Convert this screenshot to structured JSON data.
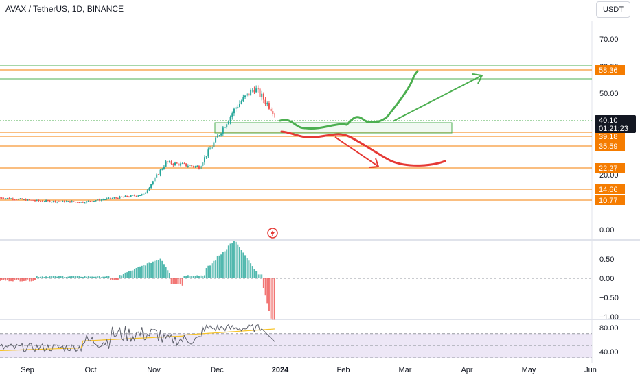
{
  "header": {
    "title": "AVAX / TetherUS, 1D, BINANCE",
    "currency": "USDT"
  },
  "colors": {
    "bull": "#26a69a",
    "bear": "#ef5350",
    "level": "#f57c00",
    "zone": "#4caf50",
    "drawing_green": "#4caf50",
    "drawing_red": "#e53935",
    "rsi_line": "#5d606b",
    "rsi_ma": "#f7c325",
    "rsi_band": "#ede7f6",
    "price_label": "#131722"
  },
  "price_axis": {
    "ticks": [
      "70.00",
      "60.00",
      "50.00",
      "20.00",
      "0.00"
    ],
    "levels": [
      {
        "value": 58.36,
        "label": "58.36"
      },
      {
        "value": 39.18,
        "label": "39.18"
      },
      {
        "value": 35.59,
        "label": "35.59"
      },
      {
        "value": 22.27,
        "label": "22.27"
      },
      {
        "value": 14.66,
        "label": "14.66"
      },
      {
        "value": 10.77,
        "label": "10.77"
      }
    ],
    "current": {
      "value": 40.1,
      "label": "40.10",
      "countdown": "01:21:23"
    }
  },
  "oscillator_axis": {
    "ticks": [
      "0.50",
      "0.00",
      "−0.50",
      "−1.00"
    ]
  },
  "rsi_axis": {
    "ticks": [
      "80.00",
      "40.00"
    ]
  },
  "time_axis": {
    "labels": [
      "Sep",
      "Oct",
      "Nov",
      "Dec",
      "2024",
      "Feb",
      "Mar",
      "Apr",
      "May",
      "Jun"
    ]
  },
  "chart_data": {
    "type": "candlestick",
    "symbol": "AVAX / TetherUS",
    "interval": "1D",
    "exchange": "BINANCE",
    "approx_close_path": [
      {
        "x": "Aug 2023",
        "y": 10.9
      },
      {
        "x": "Sep 2023",
        "y": 9.8
      },
      {
        "x": "Oct 2023",
        "y": 9.5
      },
      {
        "x": "Nov 2023",
        "y": 12.0
      },
      {
        "x": "Nov 2023",
        "y": 23.0
      },
      {
        "x": "Dec 2023",
        "y": 21.5
      },
      {
        "x": "Dec 2023",
        "y": 42.0
      },
      {
        "x": "Dec 2023",
        "y": 48.5
      },
      {
        "x": "Jan 2024",
        "y": 40.1
      }
    ],
    "support_resistance_levels": [
      58.36,
      39.18,
      35.59,
      22.27,
      14.66,
      10.77
    ],
    "current_price": 40.1
  }
}
